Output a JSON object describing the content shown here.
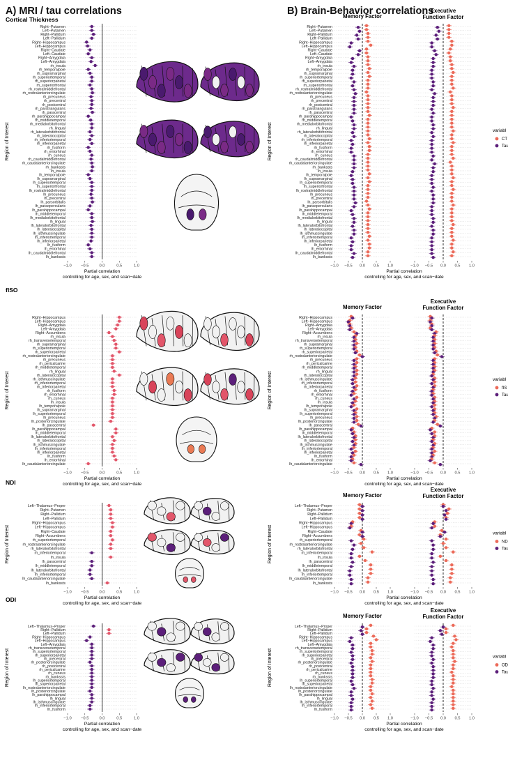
{
  "headers": {
    "left": "A) MRI / tau correlations",
    "right": "B) Brain-Behavior correlations"
  },
  "colors": {
    "purple": "#5c1f7a",
    "salmon": "#ec6a59",
    "brain_dark": "#4a1a6e",
    "brain_mid": "#7a2a86",
    "brain_ct": "#6d2a8c",
    "brain_red": "#d8445a",
    "brain_orange": "#ea7a54",
    "brain_pink": "#e2566a"
  },
  "shared": {
    "ylabel": "Region of Interest",
    "xlabel_1": "Partial correlation",
    "xlabel_2": "controlling for age,  sex, and scan−date",
    "memory": "Memory Factor",
    "exec_1": "Executive",
    "exec_2": "Function Factor",
    "legend_title": "variabl",
    "tau_label": "Tau"
  },
  "panels": [
    {
      "name": "ct",
      "title": "Cortical Thickness",
      "measure_label": "CT",
      "ticks": [
        "−1.0",
        "−0.5",
        "0.0",
        "0.5",
        "1.0"
      ],
      "chart_data": {
        "type": "scatter",
        "x_range": [
          -1,
          1
        ],
        "regions": [
          "Right−Putamen",
          "Left−Putamen",
          "Right−Pallidum",
          "Left−Pallidum",
          "Right−Hippocampus",
          "Left−Hippocampus",
          "Right−Caudate",
          "Left−Caudate",
          "Right−Amygdala",
          "Left−Amygdala",
          "rh_insula",
          "rh_temporalpole",
          "rh_supramarginal",
          "rh_superiortemporal",
          "rh_superiorparietal",
          "rh_superiorfrontal",
          "rh_rostralmiddlefrontal",
          "rh_rostralanteriorcingulate",
          "rh_precuneus",
          "rh_precentral",
          "rh_postcentral",
          "rh_parstriangularis",
          "rh_paracentral",
          "rh_parahippocampal",
          "rh_middletemporal",
          "rh_medialorbitofrontal",
          "rh_lingual",
          "rh_lateralorbitofrontal",
          "rh_lateraloccipital",
          "rh_inferiortemporal",
          "rh_inferiorparietal",
          "rh_fusiform",
          "rh_entorhinal",
          "rh_cuneus",
          "rh_caudalmiddlefrontal",
          "rh_caudalanteriorcingulate",
          "rh_bankssts",
          "lh_insula",
          "lh_temporalpole",
          "lh_supramarginal",
          "lh_superiortemporal",
          "lh_superiorfrontal",
          "lh_rostralmiddlefrontal",
          "lh_precuneus",
          "lh_precentral",
          "lh_parsorbitalis",
          "lh_paraopercularis",
          "lh_parahippocampal",
          "lh_middletemporal",
          "lh_medialorbitofrontal",
          "lh_lingual",
          "lh_lateralorbitofrontal",
          "lh_lateraloccipital",
          "lh_isthmuscingulate",
          "lh_inferiortemporal",
          "lh_inferiorparietal",
          "lh_fusiform",
          "lh_entorhinal",
          "lh_caudalmiddlefrontal",
          "lh_bankssts"
        ],
        "mri_tau": [
          -0.3,
          -0.3,
          -0.25,
          -0.3,
          -0.45,
          -0.42,
          -0.35,
          -0.4,
          -0.3,
          -0.32,
          -0.2,
          -0.4,
          -0.35,
          -0.3,
          -0.3,
          -0.35,
          -0.3,
          -0.28,
          -0.32,
          -0.3,
          -0.3,
          -0.32,
          -0.28,
          -0.4,
          -0.33,
          -0.3,
          -0.3,
          -0.35,
          -0.3,
          -0.35,
          -0.3,
          -0.4,
          -0.35,
          -0.3,
          -0.32,
          -0.3,
          -0.28,
          -0.3,
          -0.4,
          -0.35,
          -0.3,
          -0.3,
          -0.3,
          -0.32,
          -0.3,
          -0.28,
          -0.35,
          -0.4,
          -0.3,
          -0.3,
          -0.28,
          -0.32,
          -0.3,
          -0.3,
          -0.3,
          -0.32,
          -0.4,
          -0.35,
          -0.3,
          -0.3
        ],
        "mem_measure": [
          0.15,
          0.15,
          0.2,
          0.2,
          0.2,
          0.3,
          0.15,
          0.15,
          0.2,
          0.2,
          0.2,
          0.25,
          0.2,
          0.25,
          0.2,
          0.2,
          0.2,
          0.15,
          0.2,
          0.2,
          0.2,
          0.2,
          0.2,
          0.25,
          0.2,
          0.2,
          0.2,
          0.2,
          0.2,
          0.25,
          0.2,
          0.25,
          0.25,
          0.2,
          0.2,
          0.2,
          0.2,
          0.2,
          0.25,
          0.2,
          0.25,
          0.2,
          0.2,
          0.2,
          0.2,
          0.15,
          0.2,
          0.25,
          0.2,
          0.2,
          0.2,
          0.2,
          0.2,
          0.2,
          0.25,
          0.2,
          0.25,
          0.25,
          0.2,
          0.2
        ],
        "mem_tau": [
          -0.15,
          -0.1,
          -0.2,
          -0.15,
          -0.4,
          -0.45,
          -0.1,
          -0.15,
          -0.35,
          -0.4,
          -0.3,
          -0.35,
          -0.35,
          -0.4,
          -0.3,
          -0.35,
          -0.3,
          -0.25,
          -0.3,
          -0.3,
          -0.3,
          -0.3,
          -0.3,
          -0.4,
          -0.35,
          -0.3,
          -0.3,
          -0.35,
          -0.3,
          -0.4,
          -0.35,
          -0.4,
          -0.4,
          -0.3,
          -0.3,
          -0.3,
          -0.3,
          -0.35,
          -0.4,
          -0.35,
          -0.35,
          -0.3,
          -0.3,
          -0.3,
          -0.3,
          -0.25,
          -0.3,
          -0.4,
          -0.35,
          -0.3,
          -0.3,
          -0.35,
          -0.3,
          -0.3,
          -0.4,
          -0.35,
          -0.4,
          -0.4,
          -0.3,
          -0.35
        ],
        "exec_measure": [
          0.2,
          0.2,
          0.2,
          0.2,
          0.3,
          0.3,
          0.25,
          0.2,
          0.25,
          0.25,
          0.3,
          0.3,
          0.35,
          0.3,
          0.3,
          0.3,
          0.35,
          0.25,
          0.3,
          0.3,
          0.3,
          0.35,
          0.3,
          0.3,
          0.3,
          0.3,
          0.3,
          0.35,
          0.3,
          0.3,
          0.35,
          0.3,
          0.3,
          0.3,
          0.35,
          0.25,
          0.3,
          0.3,
          0.3,
          0.35,
          0.3,
          0.3,
          0.35,
          0.3,
          0.3,
          0.3,
          0.35,
          0.3,
          0.3,
          0.3,
          0.3,
          0.35,
          0.3,
          0.3,
          0.3,
          0.35,
          0.3,
          0.3,
          0.35,
          0.3
        ],
        "exec_tau": [
          -0.2,
          -0.15,
          -0.25,
          -0.2,
          -0.4,
          -0.4,
          -0.3,
          -0.25,
          -0.35,
          -0.35,
          -0.35,
          -0.4,
          -0.4,
          -0.4,
          -0.35,
          -0.35,
          -0.4,
          -0.3,
          -0.35,
          -0.35,
          -0.35,
          -0.4,
          -0.35,
          -0.4,
          -0.4,
          -0.35,
          -0.35,
          -0.4,
          -0.35,
          -0.4,
          -0.4,
          -0.4,
          -0.4,
          -0.35,
          -0.4,
          -0.3,
          -0.35,
          -0.35,
          -0.4,
          -0.4,
          -0.4,
          -0.35,
          -0.4,
          -0.35,
          -0.35,
          -0.35,
          -0.4,
          -0.4,
          -0.4,
          -0.35,
          -0.35,
          -0.4,
          -0.35,
          -0.35,
          -0.4,
          -0.4,
          -0.4,
          -0.4,
          -0.4,
          -0.35
        ]
      }
    },
    {
      "name": "fiso",
      "title": "fISO",
      "measure_label": "fIS",
      "ticks": [
        "−1.0",
        "−0.5",
        "0.0",
        "0.5",
        "1.0"
      ],
      "chart_data": {
        "type": "scatter",
        "x_range": [
          -1,
          1
        ],
        "regions": [
          "Right−Hippocampus",
          "Left−Hippocampus",
          "Right−Amygdala",
          "Left−Amygdala",
          "Right−Accumbens",
          "rh_insula",
          "rh_transversetemporal",
          "rh_supramarginal",
          "rh_superiortemporal",
          "rh_superiorparietal",
          "rh_rostralanteriorcingulate",
          "rh_precuneus",
          "rh_pericalcarine",
          "rh_middletemporal",
          "rh_lingual",
          "rh_lateraloccipital",
          "rh_isthmuscingulate",
          "rh_inferiortemporal",
          "rh_inferiorparietal",
          "rh_fusiform",
          "rh_entorhinal",
          "rh_cuneus",
          "lh_insula",
          "lh_temporalpole",
          "lh_supramarginal",
          "lh_superiortemporal",
          "lh_precuneus",
          "lh_posteriorcingulate",
          "lh_paracentral",
          "lh_parahippocampal",
          "lh_middletemporal",
          "lh_lateralorbitofrontal",
          "lh_lateraloccipital",
          "lh_isthmuscingulate",
          "lh_inferiortemporal",
          "lh_inferiorparietal",
          "lh_fusiform",
          "lh_entorhinal",
          "lh_caudalanteriorcingulate"
        ],
        "mri_tau": [
          0.5,
          0.5,
          0.45,
          0.4,
          0.2,
          0.3,
          0.35,
          0.4,
          0.4,
          0.5,
          0.3,
          0.3,
          0.3,
          0.3,
          0.35,
          0.5,
          0.3,
          0.3,
          0.3,
          0.35,
          0.35,
          0.3,
          0.3,
          0.3,
          0.3,
          0.3,
          0.3,
          0.25,
          -0.25,
          0.4,
          0.4,
          0.3,
          0.35,
          0.3,
          0.3,
          0.3,
          0.35,
          0.4,
          -0.4
        ],
        "mem_measure": [
          -0.4,
          -0.45,
          -0.45,
          -0.4,
          -0.3,
          -0.25,
          -0.25,
          -0.2,
          -0.25,
          -0.2,
          -0.1,
          -0.2,
          -0.2,
          -0.25,
          -0.2,
          -0.2,
          -0.25,
          -0.25,
          -0.2,
          -0.25,
          -0.3,
          -0.2,
          -0.25,
          -0.3,
          -0.2,
          -0.25,
          -0.2,
          -0.2,
          -0.15,
          -0.35,
          -0.3,
          -0.25,
          -0.25,
          -0.25,
          -0.3,
          -0.25,
          -0.3,
          -0.35,
          -0.3
        ],
        "mem_tau": [
          -0.35,
          -0.5,
          -0.45,
          -0.45,
          -0.2,
          -0.3,
          -0.3,
          -0.3,
          -0.3,
          -0.25,
          0.0,
          -0.3,
          -0.3,
          -0.3,
          -0.3,
          -0.3,
          -0.35,
          -0.35,
          -0.3,
          -0.35,
          -0.4,
          -0.3,
          -0.35,
          -0.4,
          -0.3,
          -0.3,
          -0.3,
          -0.3,
          -0.05,
          -0.4,
          -0.35,
          -0.3,
          -0.35,
          -0.3,
          -0.4,
          -0.35,
          -0.4,
          -0.4,
          -0.05
        ],
        "exec_measure": [
          -0.45,
          -0.45,
          -0.4,
          -0.45,
          -0.25,
          -0.3,
          -0.3,
          -0.3,
          -0.3,
          -0.25,
          -0.2,
          -0.3,
          -0.3,
          -0.3,
          -0.3,
          -0.35,
          -0.3,
          -0.3,
          -0.3,
          -0.35,
          -0.35,
          -0.3,
          -0.3,
          -0.3,
          -0.3,
          -0.3,
          -0.25,
          -0.3,
          -0.2,
          -0.4,
          -0.3,
          -0.3,
          -0.35,
          -0.3,
          -0.35,
          -0.3,
          -0.35,
          -0.4,
          -0.3
        ],
        "exec_tau": [
          -0.4,
          -0.45,
          -0.4,
          -0.4,
          -0.3,
          -0.35,
          -0.35,
          -0.35,
          -0.35,
          -0.3,
          -0.05,
          -0.35,
          -0.35,
          -0.35,
          -0.35,
          -0.4,
          -0.35,
          -0.4,
          -0.35,
          -0.4,
          -0.4,
          -0.35,
          -0.35,
          -0.4,
          -0.35,
          -0.35,
          -0.3,
          -0.35,
          -0.1,
          -0.45,
          -0.4,
          -0.35,
          -0.4,
          -0.35,
          -0.4,
          -0.4,
          -0.4,
          -0.45,
          -0.1
        ]
      }
    },
    {
      "name": "ndi",
      "title": "NDI",
      "measure_label": "ND",
      "ticks": [
        "−1.0",
        "−0.5",
        "0.0",
        "0.5",
        "1.0"
      ],
      "chart_data": {
        "type": "scatter",
        "x_range": [
          -1,
          1
        ],
        "regions": [
          "Left−Thalamus−Proper",
          "Right−Putamen",
          "Right−Pallidum",
          "Left−Pallidum",
          "Right−Hippocampus",
          "Left−Hippocampus",
          "Right−Caudate",
          "Right−Accumbens",
          "rh_superiortemporal",
          "rh_rostralanteriorcingulate",
          "rh_lateralorbitofrontal",
          "rh_inferiortemporal",
          "lh_insula",
          "lh_paracentral",
          "lh_middletemporal",
          "lh_lateralorbitofrontal",
          "lh_inferiortemporal",
          "lh_caudalanteriorcingulate",
          "lh_bankssts"
        ],
        "mri_tau": [
          0.2,
          0.25,
          0.25,
          0.25,
          0.3,
          0.3,
          0.25,
          0.25,
          0.3,
          0.25,
          0.25,
          -0.3,
          0.25,
          -0.3,
          -0.3,
          -0.35,
          -0.35,
          -0.3,
          0.15
        ],
        "mem_measure": [
          -0.1,
          -0.1,
          -0.1,
          -0.1,
          -0.35,
          -0.4,
          -0.05,
          -0.1,
          0.05,
          -0.05,
          0.05,
          0.35,
          -0.1,
          0.1,
          0.3,
          0.3,
          0.3,
          0.2,
          0.2
        ],
        "mem_tau": [
          0.0,
          0.0,
          0.0,
          0.0,
          -0.4,
          -0.45,
          0.0,
          0.0,
          -0.4,
          -0.3,
          -0.35,
          -0.4,
          -0.4,
          -0.35,
          -0.4,
          -0.45,
          -0.45,
          -0.4,
          -0.4
        ],
        "exec_measure": [
          0.0,
          0.2,
          0.15,
          0.1,
          -0.3,
          -0.3,
          -0.05,
          -0.1,
          0.1,
          0.0,
          0.1,
          0.35,
          -0.1,
          0.1,
          0.3,
          0.3,
          0.3,
          0.25,
          0.25
        ],
        "exec_tau": [
          0.0,
          0.1,
          0.05,
          0.1,
          -0.35,
          -0.4,
          0.05,
          -0.1,
          -0.4,
          -0.35,
          -0.35,
          -0.4,
          -0.4,
          -0.35,
          -0.4,
          -0.4,
          -0.4,
          -0.35,
          -0.35
        ]
      }
    },
    {
      "name": "odi",
      "title": "ODI",
      "measure_label": "OD",
      "ticks": [
        "−1.0",
        "−0.5",
        "0.0",
        "0.5",
        "1.0"
      ],
      "chart_data": {
        "type": "scatter",
        "x_range": [
          -1,
          1
        ],
        "regions": [
          "Left−Thalamus−Proper",
          "Right−Pallidum",
          "Left−Pallidum",
          "Right−Hippocampus",
          "Left−Hippocampus",
          "Left−Amygdala",
          "rh_transversetemporal",
          "rh_superiortemporal",
          "rh_superiorparietal",
          "rh_precentral",
          "rh_posteriorcingulate",
          "rh_postcentral",
          "rh_pericalcarine",
          "rh_cuneus",
          "rh_bankssts",
          "lh_superiortemporal",
          "lh_superiorparietal",
          "lh_rostralanteriorcingulate",
          "lh_posteriorcingulate",
          "lh_parahippocampal",
          "lh_lingual",
          "lh_isthmuscingulate",
          "lh_inferiortemporal",
          "lh_fusiform"
        ],
        "mri_tau": [
          -0.25,
          0.2,
          0.2,
          -0.35,
          -0.45,
          -0.3,
          -0.3,
          -0.3,
          -0.3,
          -0.3,
          -0.35,
          -0.3,
          -0.3,
          -0.3,
          -0.3,
          -0.3,
          -0.3,
          -0.3,
          -0.35,
          -0.3,
          -0.3,
          -0.3,
          -0.35,
          -0.35
        ],
        "mem_measure": [
          0.3,
          0.15,
          0.15,
          0.4,
          0.5,
          0.3,
          0.3,
          0.35,
          0.35,
          0.3,
          0.35,
          0.3,
          0.3,
          0.3,
          0.3,
          0.35,
          0.35,
          0.3,
          0.3,
          0.35,
          0.3,
          0.35,
          0.3,
          0.35
        ],
        "mem_tau": [
          0.0,
          -0.05,
          0.0,
          -0.4,
          -0.45,
          -0.35,
          -0.35,
          -0.4,
          -0.35,
          -0.35,
          -0.4,
          -0.35,
          -0.35,
          -0.35,
          -0.35,
          -0.4,
          -0.35,
          -0.3,
          -0.4,
          -0.4,
          -0.35,
          -0.4,
          -0.4,
          -0.4
        ],
        "exec_measure": [
          0.35,
          0.1,
          0.1,
          0.4,
          0.45,
          0.35,
          0.3,
          0.35,
          0.35,
          0.35,
          0.4,
          0.35,
          0.35,
          0.3,
          0.35,
          0.35,
          0.35,
          0.3,
          0.35,
          0.35,
          0.35,
          0.35,
          0.35,
          0.35
        ],
        "exec_tau": [
          0.0,
          -0.1,
          -0.05,
          -0.4,
          -0.45,
          -0.35,
          -0.35,
          -0.4,
          -0.4,
          -0.35,
          -0.4,
          -0.35,
          -0.35,
          -0.35,
          -0.35,
          -0.4,
          -0.4,
          -0.35,
          -0.4,
          -0.4,
          -0.35,
          -0.4,
          -0.4,
          -0.4
        ]
      }
    }
  ]
}
